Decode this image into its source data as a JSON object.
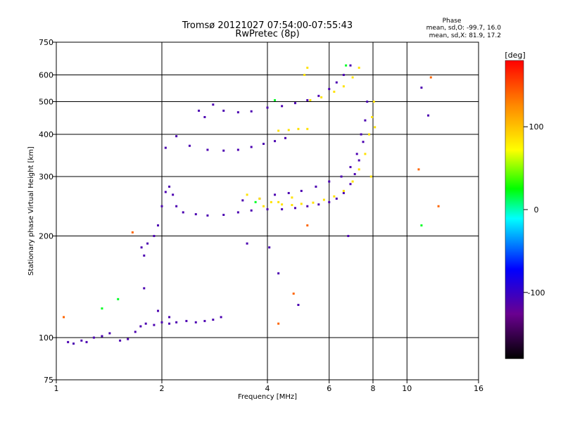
{
  "chart_data": {
    "type": "scatter",
    "title": "Tromsø 20121027 07:54:00-07:55:43",
    "subtitle": "RwPretec (8p)",
    "xlabel": "Frequency [MHz]",
    "ylabel": "Stationary phase Virtual Height [km]",
    "xscale": "log2",
    "yscale": "log",
    "xlim": [
      1,
      16
    ],
    "ylim": [
      75,
      750
    ],
    "grid": true,
    "x_ticks": [
      1,
      2,
      4,
      6,
      8,
      10,
      16
    ],
    "x_tick_labels": [
      "1",
      "2",
      "4",
      "6",
      "8",
      "10",
      "16"
    ],
    "y_ticks": [
      75,
      100,
      200,
      300,
      400,
      500,
      600,
      750
    ],
    "y_tick_labels": [
      "75",
      "100",
      "200",
      "300",
      "400",
      "500",
      "600",
      "750"
    ],
    "phase_info": {
      "heading": "Phase",
      "line_o": "mean, sd,O: -99.7, 16.0",
      "line_x": "mean, sd,X:  81.9, 17.2"
    },
    "colorbar": {
      "label": "[deg]",
      "range": [
        -180,
        180
      ],
      "ticks": [
        100,
        0,
        -100
      ],
      "tick_labels": [
        "100",
        "0",
        "-100"
      ],
      "stops": [
        "#000000",
        "#6a0090",
        "#0000ff",
        "#00ffff",
        "#00ff00",
        "#ffff00",
        "#ff8800",
        "#ff0000"
      ]
    },
    "series": [
      {
        "phase": -110,
        "points": [
          [
            1.08,
            97
          ],
          [
            1.12,
            96
          ],
          [
            1.18,
            98
          ],
          [
            1.22,
            97
          ],
          [
            1.28,
            100
          ],
          [
            1.35,
            101
          ],
          [
            1.42,
            103
          ],
          [
            1.52,
            98
          ],
          [
            1.6,
            99
          ],
          [
            1.68,
            104
          ],
          [
            1.74,
            108
          ],
          [
            1.8,
            110
          ],
          [
            1.9,
            109
          ],
          [
            2.0,
            111
          ],
          [
            2.1,
            110
          ],
          [
            2.2,
            111
          ],
          [
            2.35,
            112
          ],
          [
            2.5,
            111
          ],
          [
            2.65,
            112
          ],
          [
            2.8,
            113
          ],
          [
            2.95,
            115
          ],
          [
            1.75,
            185
          ],
          [
            1.78,
            175
          ],
          [
            1.82,
            190
          ],
          [
            1.9,
            200
          ],
          [
            1.95,
            215
          ],
          [
            2.0,
            245
          ],
          [
            2.05,
            270
          ],
          [
            2.1,
            280
          ],
          [
            2.15,
            265
          ],
          [
            2.2,
            245
          ],
          [
            2.3,
            235
          ],
          [
            2.5,
            232
          ],
          [
            2.7,
            230
          ],
          [
            3.0,
            231
          ],
          [
            3.3,
            235
          ],
          [
            3.6,
            238
          ],
          [
            4.0,
            240
          ],
          [
            4.4,
            240
          ],
          [
            4.8,
            242
          ],
          [
            5.2,
            245
          ],
          [
            5.6,
            248
          ],
          [
            6.0,
            252
          ],
          [
            6.3,
            258
          ],
          [
            6.6,
            268
          ],
          [
            6.9,
            285
          ],
          [
            7.1,
            305
          ],
          [
            7.3,
            335
          ],
          [
            7.5,
            380
          ],
          [
            7.6,
            440
          ],
          [
            7.7,
            500
          ],
          [
            3.4,
            255
          ],
          [
            3.8,
            258
          ],
          [
            4.2,
            265
          ],
          [
            4.6,
            268
          ],
          [
            5.0,
            272
          ],
          [
            5.5,
            280
          ],
          [
            6.0,
            290
          ],
          [
            6.5,
            300
          ],
          [
            6.9,
            320
          ],
          [
            7.2,
            350
          ],
          [
            7.4,
            400
          ],
          [
            2.05,
            365
          ],
          [
            2.2,
            395
          ],
          [
            2.4,
            370
          ],
          [
            2.7,
            360
          ],
          [
            3.0,
            358
          ],
          [
            3.3,
            360
          ],
          [
            3.6,
            367
          ],
          [
            3.9,
            375
          ],
          [
            4.2,
            382
          ],
          [
            4.5,
            390
          ],
          [
            2.55,
            470
          ],
          [
            2.65,
            450
          ],
          [
            2.8,
            490
          ],
          [
            3.0,
            470
          ],
          [
            3.3,
            465
          ],
          [
            3.6,
            468
          ],
          [
            4.0,
            480
          ],
          [
            4.4,
            485
          ],
          [
            4.8,
            495
          ],
          [
            5.2,
            505
          ],
          [
            5.6,
            520
          ],
          [
            6.0,
            545
          ],
          [
            6.3,
            570
          ],
          [
            6.6,
            600
          ],
          [
            6.9,
            640
          ],
          [
            1.78,
            140
          ],
          [
            1.95,
            120
          ],
          [
            2.1,
            115
          ],
          [
            3.5,
            190
          ],
          [
            4.05,
            185
          ],
          [
            4.3,
            155
          ],
          [
            4.9,
            125
          ],
          [
            6.8,
            200
          ],
          [
            11.0,
            550
          ],
          [
            11.5,
            455
          ]
        ]
      },
      {
        "phase": 85,
        "points": [
          [
            3.5,
            265
          ],
          [
            3.8,
            258
          ],
          [
            4.1,
            252
          ],
          [
            4.4,
            248
          ],
          [
            4.7,
            247
          ],
          [
            5.0,
            249
          ],
          [
            5.4,
            251
          ],
          [
            5.8,
            256
          ],
          [
            6.2,
            262
          ],
          [
            6.6,
            272
          ],
          [
            7.0,
            290
          ],
          [
            7.3,
            315
          ],
          [
            7.6,
            350
          ],
          [
            7.8,
            400
          ],
          [
            7.95,
            450
          ],
          [
            8.05,
            500
          ],
          [
            4.3,
            410
          ],
          [
            4.6,
            412
          ],
          [
            4.9,
            415
          ],
          [
            5.2,
            415
          ],
          [
            5.3,
            505
          ],
          [
            5.7,
            515
          ],
          [
            6.2,
            535
          ],
          [
            6.6,
            555
          ],
          [
            7.0,
            590
          ],
          [
            7.3,
            630
          ],
          [
            3.9,
            245
          ],
          [
            4.3,
            252
          ],
          [
            4.7,
            260
          ],
          [
            5.2,
            630
          ],
          [
            5.1,
            600
          ],
          [
            8.1,
            420
          ],
          [
            7.9,
            300
          ]
        ]
      },
      {
        "phase": 140,
        "points": [
          [
            1.05,
            115
          ],
          [
            1.65,
            205
          ],
          [
            4.75,
            135
          ],
          [
            5.2,
            215
          ],
          [
            10.8,
            315
          ],
          [
            12.3,
            245
          ],
          [
            11.7,
            590
          ],
          [
            4.3,
            110
          ]
        ]
      },
      {
        "phase": 20,
        "points": [
          [
            1.35,
            122
          ],
          [
            1.5,
            130
          ],
          [
            3.7,
            252
          ],
          [
            4.2,
            505
          ],
          [
            11.0,
            215
          ],
          [
            6.7,
            640
          ]
        ]
      }
    ]
  }
}
